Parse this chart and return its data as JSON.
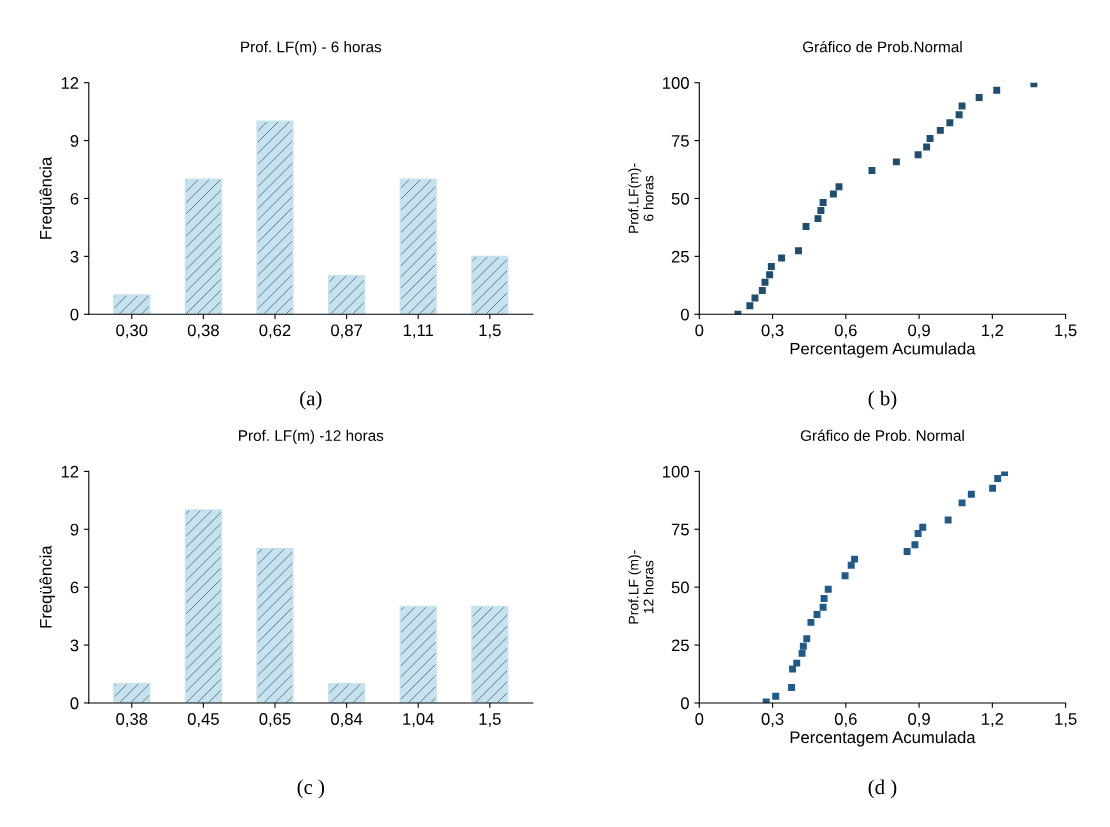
{
  "chart_data": [
    {
      "type": "bar",
      "title": "Prof. LF(m) - 6 horas",
      "ylabel": "Freqüência",
      "categories": [
        "0,30",
        "0,38",
        "0,62",
        "0,87",
        "1,11",
        "1,5"
      ],
      "values": [
        1,
        7,
        10,
        2,
        7,
        3
      ],
      "color": "#c6e2ef",
      "ylim": [
        0,
        12
      ],
      "yticks": [
        0,
        3,
        6,
        9,
        12
      ],
      "grid": false,
      "annotations": [
        "(a)"
      ]
    },
    {
      "type": "scatter",
      "title": "Gráfico de Prob.Normal",
      "xlabel": "Percentagem Acumulada",
      "ylabel": "Prof.LF(m)-\n6 horas",
      "marker": "square",
      "color": "#1f4e6e",
      "x": [
        0.158,
        0.207,
        0.228,
        0.258,
        0.269,
        0.288,
        0.295,
        0.337,
        0.406,
        0.437,
        0.486,
        0.498,
        0.507,
        0.549,
        0.572,
        0.707,
        0.807,
        0.896,
        0.931,
        0.945,
        0.987,
        1.026,
        1.064,
        1.076,
        1.146,
        1.218,
        1.37
      ],
      "values": [
        0,
        3.7,
        7.0,
        10.3,
        13.8,
        17.1,
        20.6,
        24.3,
        27.4,
        37.9,
        41.3,
        44.8,
        48.3,
        51.9,
        55.1,
        62.1,
        65.8,
        68.9,
        72.2,
        75.9,
        79.4,
        82.7,
        86.2,
        89.9,
        93.6,
        96.7,
        99.5
      ],
      "xlim": [
        0,
        1.5
      ],
      "xticks": [
        0,
        {
          "value": 0.3,
          "label": "0,3"
        },
        {
          "value": 0.6,
          "label": "0,6"
        },
        {
          "value": 0.9,
          "label": "0,9"
        },
        {
          "value": 1.2,
          "label": "1,2"
        },
        {
          "value": 1.5,
          "label": "1,5"
        }
      ],
      "ylim": [
        0,
        100
      ],
      "yticks": [
        0,
        25,
        50,
        75,
        100
      ],
      "grid": false,
      "annotations": [
        "( b)"
      ]
    },
    {
      "type": "bar",
      "title": "Prof. LF(m) -12 horas",
      "ylabel": "Freqüência",
      "categories": [
        "0,38",
        "0,45",
        "0,65",
        "0,84",
        "1,04",
        "1,5"
      ],
      "values": [
        1,
        10,
        8,
        1,
        5,
        5
      ],
      "color": "#c6e2ef",
      "ylim": [
        0,
        12
      ],
      "yticks": [
        0,
        3,
        6,
        9,
        12
      ],
      "grid": false,
      "annotations": [
        "(c )"
      ]
    },
    {
      "type": "scatter",
      "title": "Gráfico de Prob. Normal",
      "xlabel": "Percentagem Acumulada",
      "ylabel": "Prof.LF (m)-\n12 horas",
      "marker": "square",
      "color": "#1f5a8a",
      "x": [
        0.274,
        0.313,
        0.378,
        0.382,
        0.399,
        0.421,
        0.426,
        0.44,
        0.457,
        0.482,
        0.507,
        0.511,
        0.528,
        0.597,
        0.622,
        0.636,
        0.851,
        0.883,
        0.896,
        0.915,
        1.019,
        1.076,
        1.114,
        1.201,
        1.222,
        1.25
      ],
      "values": [
        0.4,
        2.9,
        6.7,
        14.7,
        17.2,
        21.4,
        24.5,
        27.7,
        34.8,
        38.2,
        41.3,
        45.1,
        49.1,
        54.9,
        59.5,
        62.1,
        65.4,
        68.3,
        73.2,
        75.9,
        79.0,
        86.4,
        90.1,
        92.7,
        96.9,
        99.5
      ],
      "xlim": [
        0,
        1.5
      ],
      "xticks": [
        0,
        {
          "value": 0.3,
          "label": "0,3"
        },
        {
          "value": 0.6,
          "label": "0,6"
        },
        {
          "value": 0.9,
          "label": "0,9"
        },
        {
          "value": 1.2,
          "label": "1,2"
        },
        {
          "value": 1.5,
          "label": "1,5"
        }
      ],
      "ylim": [
        0,
        100
      ],
      "yticks": [
        0,
        25,
        50,
        75,
        100
      ],
      "grid": false,
      "annotations": [
        "(d )"
      ]
    }
  ]
}
